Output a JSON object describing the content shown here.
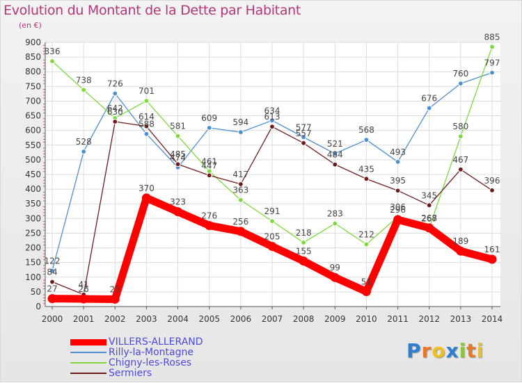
{
  "chart_data": {
    "type": "line",
    "title": "Evolution du Montant de la Dette par Habitant",
    "subtitle": "(en €)",
    "x": [
      "2000",
      "2001",
      "2002",
      "2003",
      "2004",
      "2005",
      "2006",
      "2007",
      "2008",
      "2009",
      "2010",
      "2011",
      "2012",
      "2013",
      "2014"
    ],
    "ylim": [
      0,
      900
    ],
    "yticks": [
      0,
      50,
      100,
      150,
      200,
      250,
      300,
      350,
      400,
      450,
      500,
      550,
      600,
      650,
      700,
      750,
      800,
      850,
      900
    ],
    "grid": true,
    "legend_position": "bottom-left",
    "series": [
      {
        "name": "VILLERS-ALLERAND",
        "color": "#ff0000",
        "values": [
          27,
          26,
          25,
          370,
          323,
          276,
          256,
          205,
          155,
          99,
          51,
          296,
          268,
          189,
          161
        ]
      },
      {
        "name": "Rilly-la-Montagne",
        "color": "#4d8ecf",
        "values": [
          122,
          528,
          726,
          588,
          474,
          609,
          594,
          634,
          577,
          521,
          568,
          493,
          676,
          760,
          797
        ]
      },
      {
        "name": "Chigny-les-Roses",
        "color": "#7ed93b",
        "values": [
          836,
          738,
          642,
          701,
          581,
          461,
          363,
          291,
          218,
          283,
          212,
          306,
          267,
          580,
          885
        ]
      },
      {
        "name": "Sermiers",
        "color": "#6e1a1a",
        "values": [
          84,
          41,
          630,
          614,
          485,
          447,
          417,
          613,
          557,
          484,
          435,
          395,
          345,
          467,
          396
        ]
      }
    ]
  },
  "logo": {
    "letters": [
      "P",
      "r",
      "o",
      "x",
      "i",
      "t",
      "i"
    ],
    "colors": [
      "#2f7fcf",
      "#e8782a",
      "#f0c020",
      "#2f7fcf",
      "#8fc43a",
      "#e8782a",
      "#f0c020"
    ]
  }
}
